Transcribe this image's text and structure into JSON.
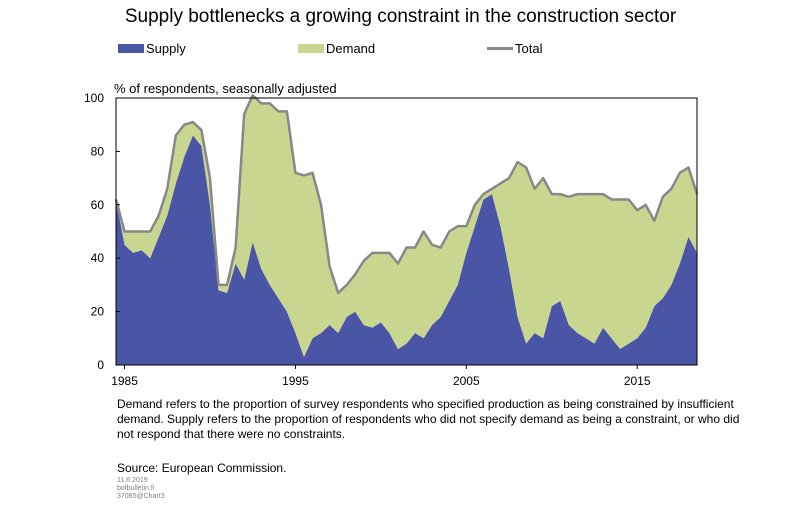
{
  "chart_data": {
    "type": "area",
    "title": "Supply bottlenecks a growing constraint in the construction sector",
    "ylabel": "% of respondents, seasonally adjusted",
    "ylim": [
      0,
      100
    ],
    "xlim": [
      1984.5,
      2018.5
    ],
    "yticks": [
      0,
      20,
      40,
      60,
      80,
      100
    ],
    "xticks": [
      1985,
      1995,
      2005,
      2015
    ],
    "legend_position": "top",
    "series": [
      {
        "name": "Supply",
        "color": "#4b55a6",
        "type": "area",
        "x": [
          1984.5,
          1985,
          1985.5,
          1986,
          1986.5,
          1987,
          1987.5,
          1988,
          1988.5,
          1989,
          1989.5,
          1990,
          1990.5,
          1991,
          1991.5,
          1992,
          1992.5,
          1993,
          1993.5,
          1994,
          1994.5,
          1995,
          1995.5,
          1996,
          1996.5,
          1997,
          1997.5,
          1998,
          1998.5,
          1999,
          1999.5,
          2000,
          2000.5,
          2001,
          2001.5,
          2002,
          2002.5,
          2003,
          2003.5,
          2004,
          2004.5,
          2005,
          2005.5,
          2006,
          2006.5,
          2007,
          2007.5,
          2008,
          2008.5,
          2009,
          2009.5,
          2010,
          2010.5,
          2011,
          2011.5,
          2012,
          2012.5,
          2013,
          2013.5,
          2014,
          2014.5,
          2015,
          2015.5,
          2016,
          2016.5,
          2017,
          2017.5,
          2018,
          2018.5
        ],
        "values": [
          62,
          45,
          42,
          43,
          40,
          48,
          56,
          68,
          78,
          86,
          82,
          60,
          28,
          27,
          38,
          32,
          46,
          36,
          30,
          25,
          20,
          12,
          3,
          10,
          12,
          15,
          12,
          18,
          20,
          15,
          14,
          16,
          12,
          6,
          8,
          12,
          10,
          15,
          18,
          24,
          30,
          42,
          52,
          62,
          64,
          52,
          36,
          18,
          8,
          12,
          10,
          22,
          24,
          15,
          12,
          10,
          8,
          14,
          10,
          6,
          8,
          10,
          14,
          22,
          25,
          30,
          38,
          48,
          42
        ]
      },
      {
        "name": "Demand",
        "color": "#c9d68f",
        "type": "area",
        "x": [
          1984.5,
          1985,
          1985.5,
          1986,
          1986.5,
          1987,
          1987.5,
          1988,
          1988.5,
          1989,
          1989.5,
          1990,
          1990.5,
          1991,
          1991.5,
          1992,
          1992.5,
          1993,
          1993.5,
          1994,
          1994.5,
          1995,
          1995.5,
          1996,
          1996.5,
          1997,
          1997.5,
          1998,
          1998.5,
          1999,
          1999.5,
          2000,
          2000.5,
          2001,
          2001.5,
          2002,
          2002.5,
          2003,
          2003.5,
          2004,
          2004.5,
          2005,
          2005.5,
          2006,
          2006.5,
          2007,
          2007.5,
          2008,
          2008.5,
          2009,
          2009.5,
          2010,
          2010.5,
          2011,
          2011.5,
          2012,
          2012.5,
          2013,
          2013.5,
          2014,
          2014.5,
          2015,
          2015.5,
          2016,
          2016.5,
          2017,
          2017.5,
          2018,
          2018.5
        ],
        "values": [
          0,
          5,
          8,
          7,
          10,
          8,
          10,
          18,
          12,
          5,
          6,
          10,
          2,
          3,
          6,
          62,
          55,
          62,
          68,
          70,
          75,
          60,
          68,
          62,
          48,
          22,
          15,
          12,
          14,
          24,
          28,
          26,
          30,
          32,
          36,
          32,
          40,
          30,
          26,
          26,
          22,
          10,
          8,
          2,
          2,
          16,
          34,
          58,
          66,
          54,
          60,
          42,
          40,
          48,
          52,
          54,
          56,
          50,
          52,
          56,
          54,
          48,
          46,
          32,
          38,
          36,
          34,
          26,
          22
        ]
      },
      {
        "name": "Total",
        "color": "#888888",
        "type": "line",
        "x": [
          1984.5,
          1985,
          1985.5,
          1986,
          1986.5,
          1987,
          1987.5,
          1988,
          1988.5,
          1989,
          1989.5,
          1990,
          1990.5,
          1991,
          1991.5,
          1992,
          1992.5,
          1993,
          1993.5,
          1994,
          1994.5,
          1995,
          1995.5,
          1996,
          1996.5,
          1997,
          1997.5,
          1998,
          1998.5,
          1999,
          1999.5,
          2000,
          2000.5,
          2001,
          2001.5,
          2002,
          2002.5,
          2003,
          2003.5,
          2004,
          2004.5,
          2005,
          2005.5,
          2006,
          2006.5,
          2007,
          2007.5,
          2008,
          2008.5,
          2009,
          2009.5,
          2010,
          2010.5,
          2011,
          2011.5,
          2012,
          2012.5,
          2013,
          2013.5,
          2014,
          2014.5,
          2015,
          2015.5,
          2016,
          2016.5,
          2017,
          2017.5,
          2018,
          2018.5
        ],
        "values": [
          62,
          50,
          50,
          50,
          50,
          56,
          66,
          86,
          90,
          91,
          88,
          70,
          30,
          30,
          44,
          94,
          101,
          98,
          98,
          95,
          95,
          72,
          71,
          72,
          60,
          37,
          27,
          30,
          34,
          39,
          42,
          42,
          42,
          38,
          44,
          44,
          50,
          45,
          44,
          50,
          52,
          52,
          60,
          64,
          66,
          68,
          70,
          76,
          74,
          66,
          70,
          64,
          64,
          63,
          64,
          64,
          64,
          64,
          62,
          62,
          62,
          58,
          60,
          54,
          63,
          66,
          72,
          74,
          64
        ]
      }
    ]
  },
  "legend": {
    "supply": "Supply",
    "demand": "Demand",
    "total": "Total"
  },
  "note": "Demand refers to the proportion of survey respondents who specified production as being constrained by insufficient demand. Supply refers to the proportion of respondents who did not specify demand as being a constraint, or who did not respond that there were no constraints.",
  "source": "Source: European Commission.",
  "meta": {
    "date": "11.6.2019",
    "site": "bofbulletin.fi",
    "code": "37085@Chart3"
  }
}
